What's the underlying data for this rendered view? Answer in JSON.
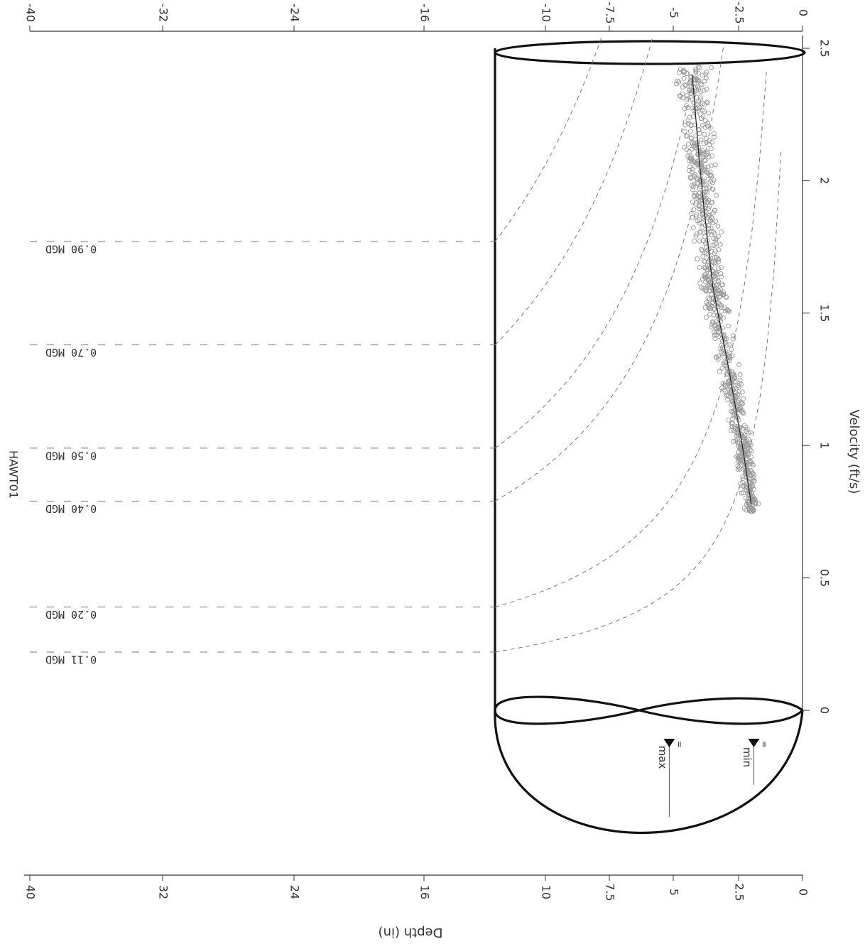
{
  "chart_data": {
    "type": "scatter",
    "title": "HAWT01",
    "xlabel": "Velocity (ft/s)",
    "ylabel": "Depth (in)",
    "xlim": [
      0,
      2.5
    ],
    "ylim": [
      0,
      40
    ],
    "orientation": "rotated-90",
    "x_ticks": [
      "0",
      "0.5",
      "1",
      "1.5",
      "2",
      "2.5"
    ],
    "x_tick_values": [
      0,
      0.5,
      1,
      1.5,
      2,
      2.5
    ],
    "y_ticks_left": [
      "0",
      "2.5",
      "5",
      "7.5",
      "10",
      "16",
      "24",
      "32",
      "40"
    ],
    "y_ticks_right": [
      "0",
      "-2.5",
      "-5",
      "-7.5",
      "-10",
      "-16",
      "-24",
      "-32",
      "-40"
    ],
    "y_tick_values": [
      0,
      2.5,
      5,
      7.5,
      10,
      16,
      24,
      32,
      40
    ],
    "pipe_diameter": 12,
    "level_markers": [
      {
        "label": "max",
        "sublabel": "=",
        "depth": 5.2
      },
      {
        "label": "min",
        "sublabel": "=",
        "depth": 1.9
      }
    ],
    "flow_curves": [
      {
        "label": "0.11 MGD",
        "velocity_at_full": 0.22
      },
      {
        "label": "0.20 MGD",
        "velocity_at_full": 0.39
      },
      {
        "label": "0.40 MGD",
        "velocity_at_full": 0.79
      },
      {
        "label": "0.50 MGD",
        "velocity_at_full": 0.99
      },
      {
        "label": "0.70 MGD",
        "velocity_at_full": 1.38
      },
      {
        "label": "0.90 MGD",
        "velocity_at_full": 1.77
      }
    ],
    "trend": [
      {
        "x": 0.78,
        "y": 2.0
      },
      {
        "x": 1.0,
        "y": 2.35
      },
      {
        "x": 1.3,
        "y": 2.9
      },
      {
        "x": 1.6,
        "y": 3.5
      },
      {
        "x": 1.9,
        "y": 3.85
      },
      {
        "x": 2.1,
        "y": 4.05
      },
      {
        "x": 2.4,
        "y": 4.3
      }
    ],
    "scatter_band": {
      "x_range": [
        0.75,
        2.43
      ],
      "spread": 0.55
    },
    "colors": {
      "axis": "#333333",
      "pipe": "#111111",
      "points": "#9a9a9a",
      "curves": "#777777",
      "grid_dash": "#777777"
    }
  }
}
